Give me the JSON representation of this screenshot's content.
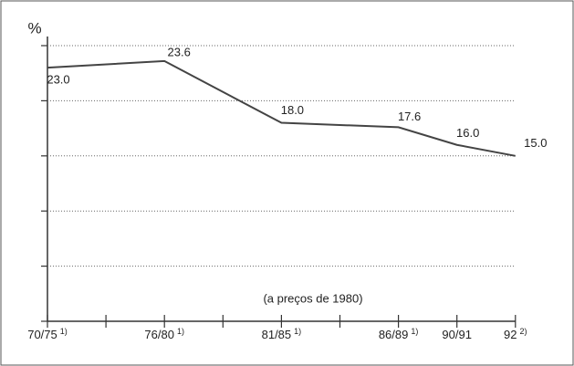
{
  "chart_data": {
    "type": "line",
    "y_label": "%",
    "annotation": "(a preços de 1980)",
    "categories": [
      "70/75",
      "76/80",
      "81/85",
      "86/89",
      "90/91",
      "92"
    ],
    "category_notes": [
      "1)",
      "1)",
      "1)",
      "1)",
      null,
      "2)"
    ],
    "values": [
      23.0,
      23.6,
      18.0,
      17.6,
      16.0,
      15.0
    ],
    "value_labels": [
      "23.0",
      "23.6",
      "18.0",
      "17.6",
      "16.0",
      "15.0"
    ],
    "color": "#444444",
    "ylim": [
      0,
      25
    ],
    "yticks": [
      0,
      5,
      10,
      15,
      20,
      25
    ],
    "grid": true
  }
}
